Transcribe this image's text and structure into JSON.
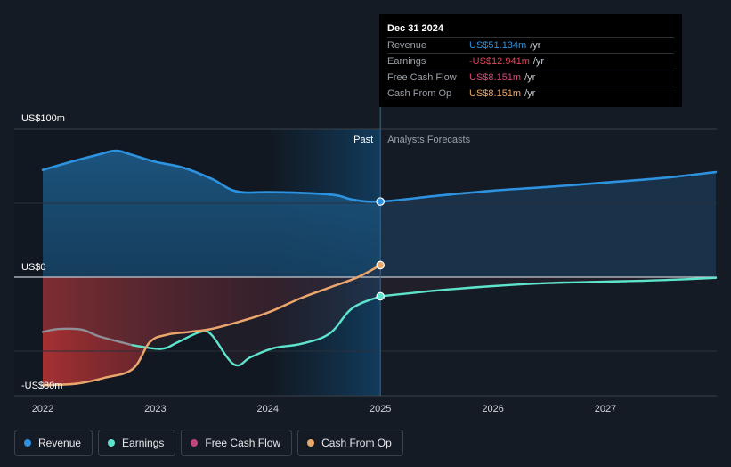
{
  "chart_data": {
    "type": "area",
    "x_axis": {
      "ticks": [
        "2022",
        "2023",
        "2024",
        "2025",
        "2026",
        "2027"
      ],
      "range": [
        2021.78,
        2027.98
      ]
    },
    "y_axis": {
      "ticks": [
        "US$100m",
        "US$0",
        "-US$80m"
      ],
      "range": [
        -80,
        100
      ]
    },
    "divider_x": 2025.0,
    "past_label": "Past",
    "forecast_label": "Analysts Forecasts",
    "series": [
      {
        "name": "Revenue",
        "color": "#2d93e0",
        "values": [
          [
            2022.0,
            72.5
          ],
          [
            2022.3,
            79
          ],
          [
            2022.5,
            83
          ],
          [
            2022.65,
            85.5
          ],
          [
            2022.78,
            83
          ],
          [
            2023.0,
            78
          ],
          [
            2023.25,
            74
          ],
          [
            2023.5,
            66.5
          ],
          [
            2023.72,
            58
          ],
          [
            2024.0,
            57.5
          ],
          [
            2024.3,
            57
          ],
          [
            2024.6,
            55.5
          ],
          [
            2024.75,
            52.5
          ],
          [
            2025.0,
            51.134
          ],
          [
            2025.5,
            55
          ],
          [
            2026.0,
            58.5
          ],
          [
            2026.5,
            61
          ],
          [
            2027.0,
            64
          ],
          [
            2027.5,
            67
          ],
          [
            2027.98,
            71
          ]
        ]
      },
      {
        "name": "Earnings",
        "color": "#5ee3cc",
        "values": [
          [
            2022.0,
            -37
          ],
          [
            2022.15,
            -35
          ],
          [
            2022.35,
            -35.5
          ],
          [
            2022.5,
            -40
          ],
          [
            2022.8,
            -46
          ],
          [
            2023.05,
            -48.5
          ],
          [
            2023.2,
            -44
          ],
          [
            2023.4,
            -37
          ],
          [
            2023.5,
            -39
          ],
          [
            2023.7,
            -59
          ],
          [
            2023.85,
            -54
          ],
          [
            2024.05,
            -48
          ],
          [
            2024.3,
            -45
          ],
          [
            2024.55,
            -38
          ],
          [
            2024.75,
            -21
          ],
          [
            2025.0,
            -12.941
          ],
          [
            2025.5,
            -9
          ],
          [
            2026.0,
            -6
          ],
          [
            2026.5,
            -4
          ],
          [
            2027.0,
            -3
          ],
          [
            2027.5,
            -2
          ],
          [
            2027.98,
            -0.5
          ]
        ]
      },
      {
        "name": "Free Cash Flow",
        "color": "#c0457f",
        "values": [
          [
            2022.0,
            -73
          ],
          [
            2022.3,
            -72
          ],
          [
            2022.55,
            -68
          ],
          [
            2022.8,
            -62
          ],
          [
            2022.95,
            -44
          ],
          [
            2023.1,
            -39
          ],
          [
            2023.3,
            -37
          ],
          [
            2023.5,
            -35
          ],
          [
            2023.75,
            -30
          ],
          [
            2024.0,
            -24
          ],
          [
            2024.3,
            -14
          ],
          [
            2024.55,
            -7
          ],
          [
            2024.8,
            0
          ],
          [
            2025.0,
            8.151
          ]
        ]
      },
      {
        "name": "Cash From Op",
        "color": "#e9a86a",
        "values": [
          [
            2022.0,
            -73
          ],
          [
            2022.3,
            -72
          ],
          [
            2022.55,
            -68
          ],
          [
            2022.8,
            -62
          ],
          [
            2022.95,
            -44
          ],
          [
            2023.1,
            -39
          ],
          [
            2023.3,
            -37
          ],
          [
            2023.5,
            -35
          ],
          [
            2023.75,
            -30
          ],
          [
            2024.0,
            -24
          ],
          [
            2024.3,
            -14
          ],
          [
            2024.55,
            -7
          ],
          [
            2024.8,
            0
          ],
          [
            2025.0,
            8.151
          ]
        ]
      }
    ]
  },
  "tooltip": {
    "date": "Dec 31 2024",
    "rows": [
      {
        "name": "Revenue",
        "value": "US$51.134m",
        "unit": "/yr",
        "color": "#2d93e0"
      },
      {
        "name": "Earnings",
        "value": "-US$12.941m",
        "unit": "/yr",
        "color": "#e0435a"
      },
      {
        "name": "Free Cash Flow",
        "value": "US$8.151m",
        "unit": "/yr",
        "color": "#d3487e"
      },
      {
        "name": "Cash From Op",
        "value": "US$8.151m",
        "unit": "/yr",
        "color": "#e9a86a"
      }
    ]
  },
  "legend": [
    {
      "label": "Revenue",
      "color": "#2d93e0"
    },
    {
      "label": "Earnings",
      "color": "#5ee3cc"
    },
    {
      "label": "Free Cash Flow",
      "color": "#c0457f"
    },
    {
      "label": "Cash From Op",
      "color": "#e9a86a"
    }
  ]
}
